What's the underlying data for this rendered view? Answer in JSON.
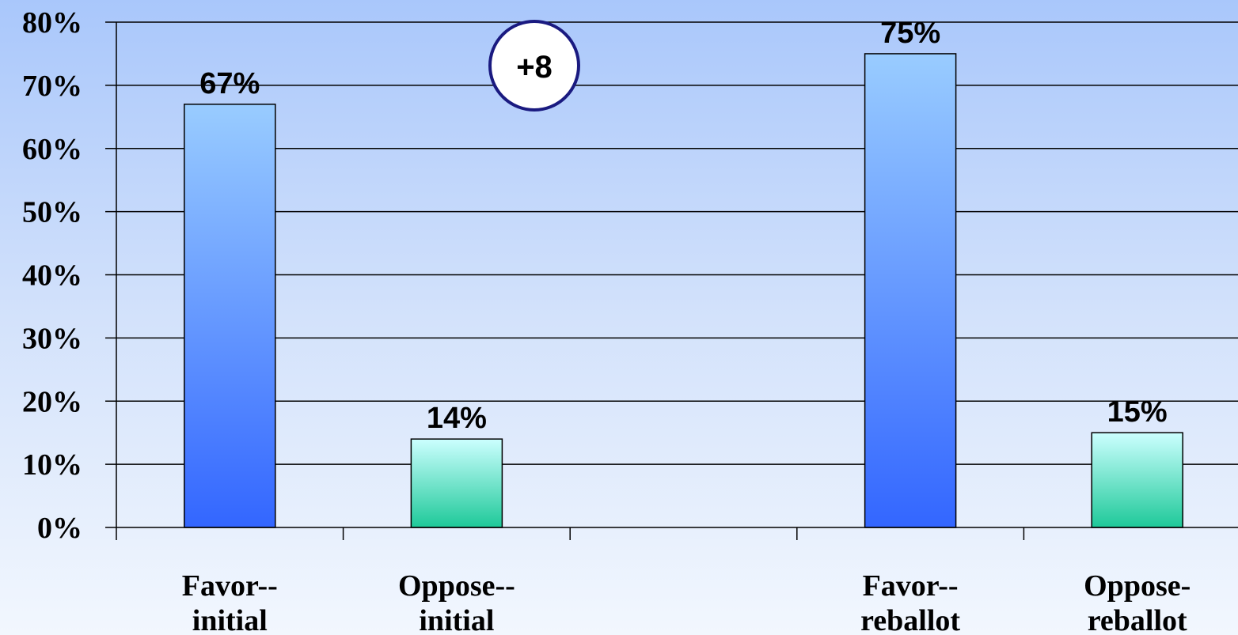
{
  "chart_data": {
    "type": "bar",
    "title": "",
    "xlabel": "",
    "ylabel": "",
    "ylim": [
      0,
      80
    ],
    "y_ticks": [
      0,
      10,
      20,
      30,
      40,
      50,
      60,
      70,
      80
    ],
    "y_tick_format": "{v}%",
    "grid": true,
    "categories": [
      {
        "label": [
          "Favor--",
          "initial"
        ],
        "value": 67,
        "label_text": "67%",
        "style": "favor"
      },
      {
        "label": [
          "Oppose--",
          "initial"
        ],
        "value": 14,
        "label_text": "14%",
        "style": "oppose"
      },
      {
        "label": [
          "",
          ""
        ],
        "value": null,
        "label_text": "",
        "style": "empty"
      },
      {
        "label": [
          "Favor--",
          "reballot"
        ],
        "value": 75,
        "label_text": "75%",
        "style": "favor"
      },
      {
        "label": [
          "Oppose-",
          "reballot"
        ],
        "value": 15,
        "label_text": "15%",
        "style": "oppose"
      }
    ],
    "annotation": {
      "text": "+8"
    },
    "colors": {
      "favor_top": "#99ccff",
      "favor_bottom": "#3366ff",
      "oppose_top": "#ccffff",
      "oppose_bottom": "#1ec999",
      "badge_border": "#1a1a80",
      "grid": "#000000"
    }
  }
}
